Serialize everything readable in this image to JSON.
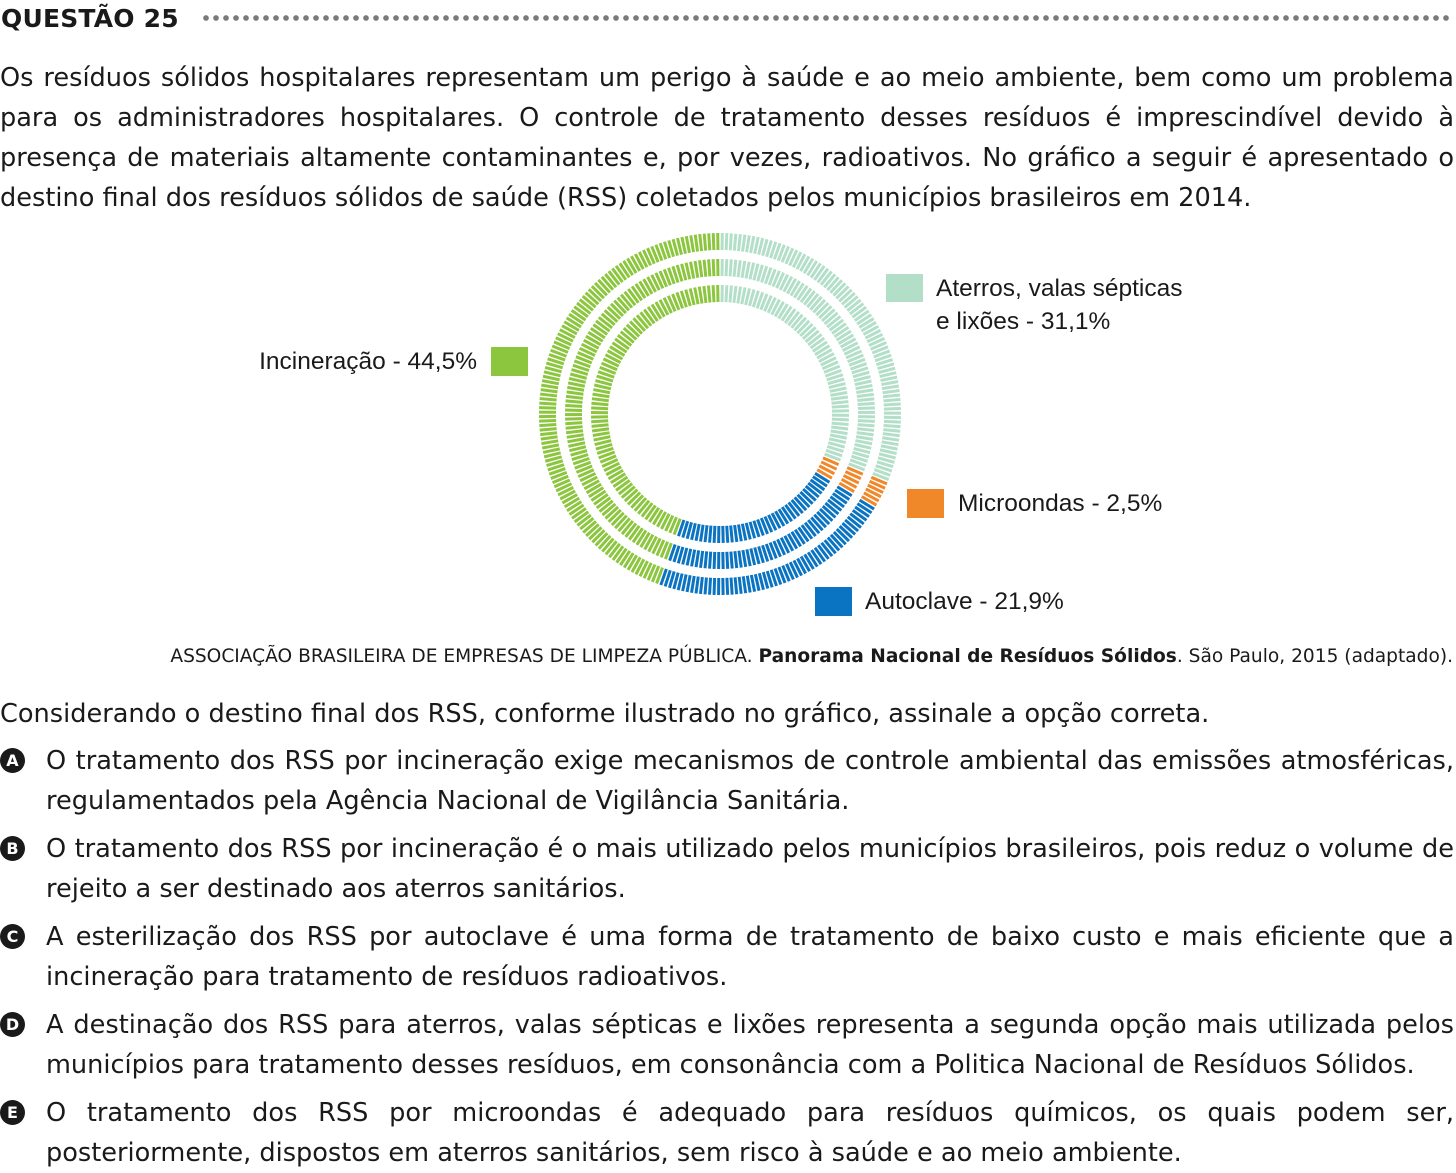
{
  "header": {
    "title": "QUESTÃO 25"
  },
  "intro": {
    "lines": [
      "Os resíduos sólidos hospitalares representam um perigo à saúde e ao meio ambiente, bem como um problema",
      "para os administradores hospitalares. O controle de tratamento desses resíduos é imprescindível devido à",
      "presença de materiais altamente contaminantes e, por vezes, radioativos. No gráfico a seguir é apresentado",
      "o destino final dos resíduos sólidos de saúde (RSS) coletados pelos municípios brasileiros em 2014."
    ]
  },
  "chart_data": {
    "type": "pie",
    "style": "donut with three dashed concentric rings",
    "legend_placement": "around the chart",
    "slices": [
      {
        "label_line1": "Aterros, valas sépticas",
        "label_line2": "e lixões - 31,1%",
        "value": 31.1,
        "color": "#b3dfc8"
      },
      {
        "label": "Microondas - 2,5%",
        "value": 2.5,
        "color": "#f08728"
      },
      {
        "label": "Autoclave - 21,9%",
        "value": 21.9,
        "color": "#0a74c2"
      },
      {
        "label": "Incineração - 44,5%",
        "value": 44.5,
        "color": "#8cc63f"
      }
    ]
  },
  "source": {
    "prefix": "ASSOCIAÇÃO BRASILEIRA DE EMPRESAS DE LIMPEZA PÚBLICA. ",
    "title": "Panorama Nacional de Resíduos Sólidos",
    "suffix": ". São Paulo, 2015 (adaptado)."
  },
  "prompt": "Considerando o destino final dos RSS, conforme ilustrado no gráfico, assinale a opção correta.",
  "options": [
    {
      "letter": "A",
      "text": "O tratamento dos RSS por incineração exige mecanismos de controle ambiental das emissões atmosféricas, regulamentados pela Agência Nacional de Vigilância Sanitária."
    },
    {
      "letter": "B",
      "text": "O tratamento dos RSS por incineração é o mais utilizado pelos municípios brasileiros, pois reduz o volume de rejeito a ser destinado aos aterros sanitários."
    },
    {
      "letter": "C",
      "text": "A esterilização dos RSS por autoclave é uma forma de tratamento de baixo custo e mais eficiente que a incineração para tratamento de resíduos radioativos."
    },
    {
      "letter": "D",
      "text": "A destinação dos RSS para aterros, valas sépticas e lixões representa a segunda opção mais utilizada pelos municípios para tratamento desses resíduos, em consonância com a Politica Nacional de Resíduos Sólidos."
    },
    {
      "letter": "E",
      "text": "O tratamento dos RSS por microondas é adequado para resíduos químicos, os quais podem ser, posteriormente, dispostos em aterros sanitários, sem risco à saúde e ao meio ambiente."
    }
  ]
}
